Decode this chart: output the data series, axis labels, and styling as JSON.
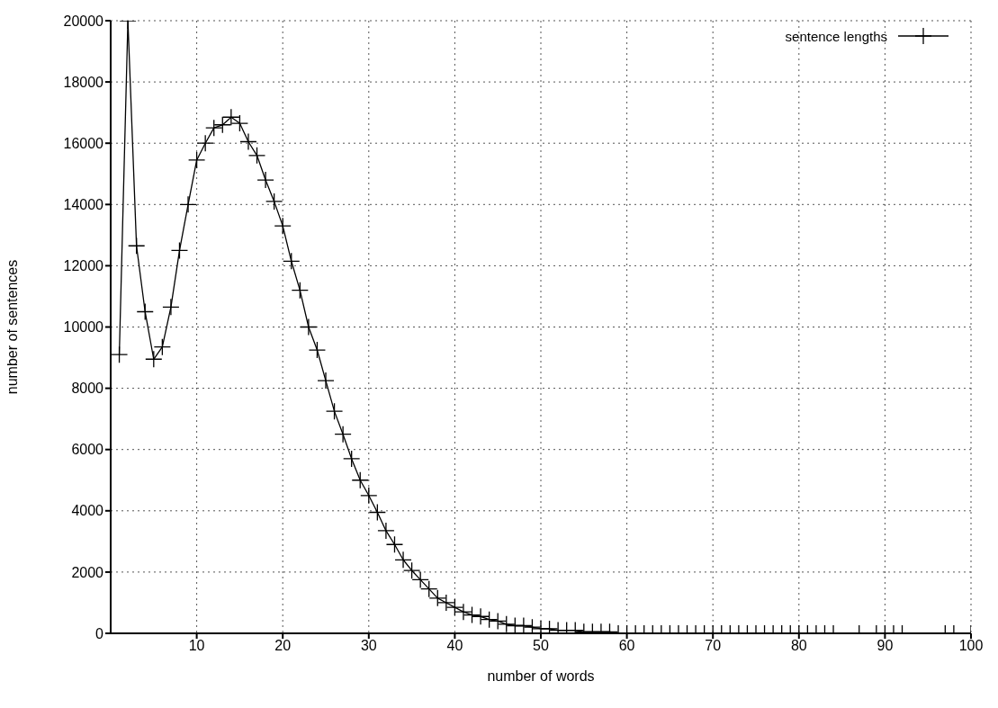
{
  "chart_data": {
    "type": "line",
    "xlabel": "number of words",
    "ylabel": "number of sentences",
    "xlim": [
      0,
      100
    ],
    "xticks": [
      10,
      20,
      30,
      40,
      50,
      60,
      70,
      80,
      90,
      100
    ],
    "ylim": [
      0,
      20000
    ],
    "yticks": [
      0,
      2000,
      4000,
      6000,
      8000,
      10000,
      12000,
      14000,
      16000,
      18000,
      20000
    ],
    "grid": true,
    "legend": "top right",
    "marker": "cross",
    "line_style": "solid",
    "series": [
      {
        "name": "sentence lengths",
        "color": "#000000",
        "x": [
          1,
          2,
          3,
          4,
          5,
          6,
          7,
          8,
          9,
          10,
          11,
          12,
          13,
          14,
          15,
          16,
          17,
          18,
          19,
          20,
          21,
          22,
          23,
          24,
          25,
          26,
          27,
          28,
          29,
          30,
          31,
          32,
          33,
          34,
          35,
          36,
          37,
          38,
          39,
          40,
          41,
          42,
          43,
          44,
          45,
          46,
          47,
          48,
          49,
          50,
          51,
          52,
          53,
          54,
          55,
          56,
          57,
          58,
          59,
          60,
          61,
          62,
          63,
          64,
          65,
          66,
          67,
          68,
          69,
          70,
          71,
          72,
          73,
          74,
          75,
          76,
          77,
          78,
          79,
          80,
          81,
          82,
          83,
          84,
          87,
          89,
          90,
          91,
          92,
          97,
          98,
          100
        ],
        "values": [
          9100,
          20000,
          12650,
          10500,
          8950,
          9350,
          10650,
          12500,
          14000,
          15450,
          16000,
          16500,
          16600,
          16850,
          16650,
          16050,
          15600,
          14800,
          14100,
          13300,
          12150,
          11200,
          10000,
          9250,
          8250,
          7250,
          6500,
          5700,
          5000,
          4500,
          3950,
          3350,
          2900,
          2400,
          2050,
          1750,
          1450,
          1150,
          1000,
          850,
          700,
          600,
          550,
          450,
          400,
          300,
          250,
          250,
          200,
          150,
          150,
          100,
          100,
          100,
          50,
          50,
          50,
          50,
          0,
          0,
          0,
          0,
          0,
          0,
          0,
          0,
          0,
          0,
          0,
          0,
          0,
          0,
          0,
          0,
          0,
          0,
          0,
          0,
          0,
          0,
          0,
          0,
          0,
          0,
          0,
          0,
          0,
          0,
          0,
          0,
          0,
          0
        ]
      }
    ]
  }
}
